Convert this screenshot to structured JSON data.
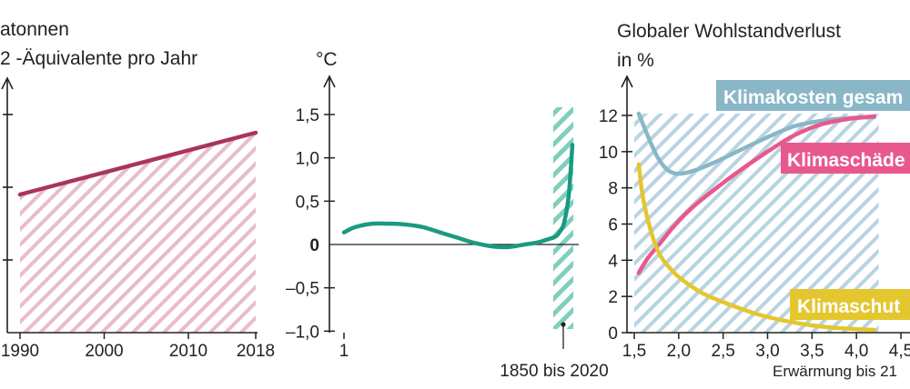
{
  "colors": {
    "emissions_line": "#a83460",
    "emissions_fill_stripe": "#e8bccb",
    "temperature_line": "#1a9a80",
    "temperature_highlight_stripe": "#7fcfbd",
    "costs_fill_stripe": "#b8d4e0",
    "total_costs": "#89b7c8",
    "damages": "#e8588d",
    "protection": "#e4c62f",
    "axis": "#222222"
  },
  "chart_data": [
    {
      "type": "area",
      "ylabel_lines": [
        "atonnen",
        "2 -Äquivalente pro Jahr"
      ],
      "x_ticks": [
        "1990",
        "2000",
        "2010",
        "2018"
      ],
      "x_values": [
        1990,
        2018
      ],
      "y_values": [
        38,
        55
      ],
      "ylim": [
        0,
        70
      ],
      "y_ticks": [
        20,
        40,
        60
      ],
      "grid": false
    },
    {
      "type": "line",
      "ylabel": "°C",
      "y_ticks": [
        1.5,
        1.0,
        0.5,
        0,
        -0.5,
        -1.0
      ],
      "y_tick_labels": [
        "1,5",
        "1,0",
        "0,5",
        "0",
        "–0,5",
        "–1,0"
      ],
      "ylim": [
        -1.0,
        1.8
      ],
      "x_tick_label": "1",
      "highlight_label": "1850 bis 2020",
      "x": [
        1,
        100,
        250,
        400,
        550,
        700,
        850,
        1000,
        1150,
        1300,
        1450,
        1600,
        1700,
        1780,
        1850,
        1880,
        1910,
        1940,
        1970,
        1990,
        2010,
        2020
      ],
      "y": [
        0.14,
        0.2,
        0.24,
        0.24,
        0.23,
        0.2,
        0.14,
        0.08,
        0.02,
        -0.02,
        -0.03,
        0.0,
        0.02,
        0.05,
        0.08,
        0.1,
        0.15,
        0.22,
        0.4,
        0.6,
        0.95,
        1.15
      ],
      "xlim": [
        -100,
        2100
      ],
      "highlight_range": [
        1850,
        2020
      ],
      "grid": false
    },
    {
      "type": "line",
      "title_lines": [
        "Globaler Wohlstandverlust",
        "in %"
      ],
      "xlabel": "Erwärmung bis 21",
      "x_ticks": [
        1.5,
        2.0,
        2.5,
        3.0,
        3.5,
        4.0,
        4.5
      ],
      "x_tick_labels": [
        "1,5",
        "2,0",
        "2,5",
        "3,0",
        "3,5",
        "4,0",
        "4,5"
      ],
      "y_ticks": [
        0,
        2,
        4,
        6,
        8,
        10,
        12
      ],
      "y_tick_labels": [
        "0",
        "2",
        "4",
        "6",
        "8",
        "10",
        "12"
      ],
      "xlim": [
        1.5,
        4.6
      ],
      "ylim": [
        0,
        13
      ],
      "series": [
        {
          "name": "Klimakosten gesam",
          "x": [
            1.55,
            1.65,
            1.75,
            1.85,
            1.95,
            2.05,
            2.2,
            2.4,
            2.7,
            3.0,
            3.3,
            3.6,
            3.9,
            4.2
          ],
          "y": [
            12.1,
            10.9,
            9.8,
            9.1,
            8.8,
            8.8,
            9.0,
            9.4,
            10.1,
            10.8,
            11.4,
            11.7,
            11.85,
            11.9
          ]
        },
        {
          "name": "Klimaschäde",
          "x": [
            1.55,
            1.65,
            1.8,
            1.95,
            2.15,
            2.4,
            2.7,
            3.0,
            3.3,
            3.6,
            3.9,
            4.2
          ],
          "y": [
            3.3,
            4.1,
            5.0,
            5.9,
            6.9,
            7.9,
            9.0,
            10.0,
            10.9,
            11.5,
            11.8,
            11.95
          ]
        },
        {
          "name": "Klimaschut",
          "x": [
            1.55,
            1.6,
            1.7,
            1.8,
            1.95,
            2.1,
            2.3,
            2.6,
            2.9,
            3.2,
            3.5,
            3.8,
            4.2
          ],
          "y": [
            9.3,
            7.4,
            5.4,
            4.2,
            3.3,
            2.7,
            2.1,
            1.5,
            1.0,
            0.65,
            0.4,
            0.25,
            0.15
          ]
        }
      ],
      "shaded_range": [
        1.5,
        4.25
      ],
      "grid": false
    }
  ]
}
